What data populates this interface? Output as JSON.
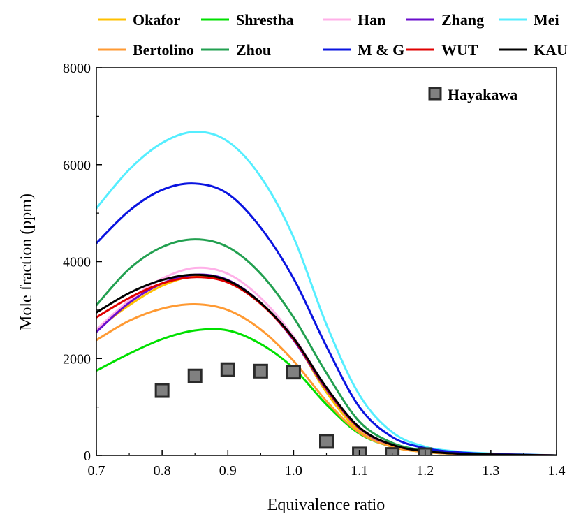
{
  "chart_data": {
    "type": "line",
    "xlabel": "Equivalence ratio",
    "ylabel": "Mole fraction (ppm)",
    "xlim": [
      0.7,
      1.4
    ],
    "ylim": [
      0,
      8000
    ],
    "xticks": [
      "0.7",
      "0.8",
      "0.9",
      "1.0",
      "1.1",
      "1.2",
      "1.3",
      "1.4"
    ],
    "yticks": [
      "0",
      "2000",
      "4000",
      "6000",
      "8000"
    ],
    "grid": false,
    "legend_placement": "top",
    "series": [
      {
        "name": "Okafor",
        "color": "#FFC000",
        "x": [
          0.7,
          0.75,
          0.8,
          0.85,
          0.9,
          0.95,
          1.0,
          1.05,
          1.1,
          1.15,
          1.2,
          1.25,
          1.3,
          1.35,
          1.4
        ],
        "y": [
          2600,
          3100,
          3500,
          3700,
          3600,
          3150,
          2400,
          1300,
          500,
          180,
          70,
          30,
          15,
          8,
          0
        ]
      },
      {
        "name": "Shrestha",
        "color": "#00E000",
        "x": [
          0.7,
          0.75,
          0.8,
          0.85,
          0.9,
          0.95,
          1.0,
          1.05,
          1.1,
          1.15,
          1.2,
          1.25,
          1.3,
          1.35,
          1.4
        ],
        "y": [
          1750,
          2100,
          2400,
          2580,
          2580,
          2300,
          1800,
          1050,
          450,
          180,
          70,
          30,
          15,
          8,
          0
        ]
      },
      {
        "name": "Han",
        "color": "#FFB0E8",
        "x": [
          0.7,
          0.75,
          0.8,
          0.85,
          0.9,
          0.95,
          1.0,
          1.05,
          1.1,
          1.15,
          1.2,
          1.25,
          1.3,
          1.35,
          1.4
        ],
        "y": [
          2600,
          3200,
          3650,
          3870,
          3750,
          3250,
          2450,
          1400,
          580,
          220,
          90,
          40,
          20,
          10,
          0
        ]
      },
      {
        "name": "Zhang",
        "color": "#6A0DCC",
        "x": [
          0.7,
          0.75,
          0.8,
          0.85,
          0.9,
          0.95,
          1.0,
          1.05,
          1.1,
          1.15,
          1.2,
          1.25,
          1.3,
          1.35,
          1.4
        ],
        "y": [
          2550,
          3150,
          3550,
          3730,
          3620,
          3150,
          2380,
          1360,
          560,
          210,
          85,
          38,
          18,
          9,
          0
        ]
      },
      {
        "name": "Mei",
        "color": "#55EEFF",
        "x": [
          0.7,
          0.75,
          0.8,
          0.85,
          0.9,
          0.95,
          1.0,
          1.05,
          1.1,
          1.15,
          1.2,
          1.25,
          1.3,
          1.35,
          1.4
        ],
        "y": [
          5100,
          5900,
          6450,
          6680,
          6480,
          5750,
          4500,
          2700,
          1250,
          480,
          180,
          80,
          40,
          20,
          0
        ]
      },
      {
        "name": "Bertolino",
        "color": "#FF9A33",
        "x": [
          0.7,
          0.75,
          0.8,
          0.85,
          0.9,
          0.95,
          1.0,
          1.05,
          1.1,
          1.15,
          1.2,
          1.25,
          1.3,
          1.35,
          1.4
        ],
        "y": [
          2380,
          2780,
          3030,
          3120,
          3000,
          2600,
          1950,
          1120,
          470,
          180,
          70,
          30,
          15,
          8,
          0
        ]
      },
      {
        "name": "Zhou",
        "color": "#22A050",
        "x": [
          0.7,
          0.75,
          0.8,
          0.85,
          0.9,
          0.95,
          1.0,
          1.05,
          1.1,
          1.15,
          1.2,
          1.25,
          1.3,
          1.35,
          1.4
        ],
        "y": [
          3100,
          3850,
          4300,
          4460,
          4300,
          3750,
          2850,
          1700,
          700,
          260,
          100,
          45,
          22,
          10,
          0
        ]
      },
      {
        "name": "M & G",
        "color": "#0A14E0",
        "x": [
          0.7,
          0.75,
          0.8,
          0.85,
          0.9,
          0.95,
          1.0,
          1.05,
          1.1,
          1.15,
          1.2,
          1.25,
          1.3,
          1.35,
          1.4
        ],
        "y": [
          4380,
          5050,
          5480,
          5610,
          5400,
          4700,
          3650,
          2250,
          1000,
          380,
          150,
          65,
          30,
          15,
          0
        ]
      },
      {
        "name": "WUT",
        "color": "#E00000",
        "x": [
          0.7,
          0.75,
          0.8,
          0.85,
          0.9,
          0.95,
          1.0,
          1.05,
          1.1,
          1.15,
          1.2,
          1.25,
          1.3,
          1.35,
          1.4
        ],
        "y": [
          2850,
          3250,
          3550,
          3680,
          3570,
          3130,
          2400,
          1380,
          570,
          220,
          85,
          38,
          18,
          9,
          0
        ]
      },
      {
        "name": "KAU",
        "color": "#000000",
        "x": [
          0.7,
          0.75,
          0.8,
          0.85,
          0.9,
          0.95,
          1.0,
          1.05,
          1.1,
          1.15,
          1.2,
          1.25,
          1.3,
          1.35,
          1.4
        ],
        "y": [
          2950,
          3350,
          3620,
          3730,
          3610,
          3150,
          2420,
          1400,
          580,
          220,
          85,
          38,
          18,
          9,
          0
        ]
      }
    ],
    "scatter_series": {
      "name": "Hayakawa",
      "color": "#808080",
      "x": [
        0.8,
        0.85,
        0.9,
        0.95,
        1.0,
        1.05,
        1.1,
        1.15,
        1.2
      ],
      "y": [
        1340,
        1640,
        1770,
        1740,
        1720,
        290,
        30,
        20,
        15
      ]
    }
  }
}
